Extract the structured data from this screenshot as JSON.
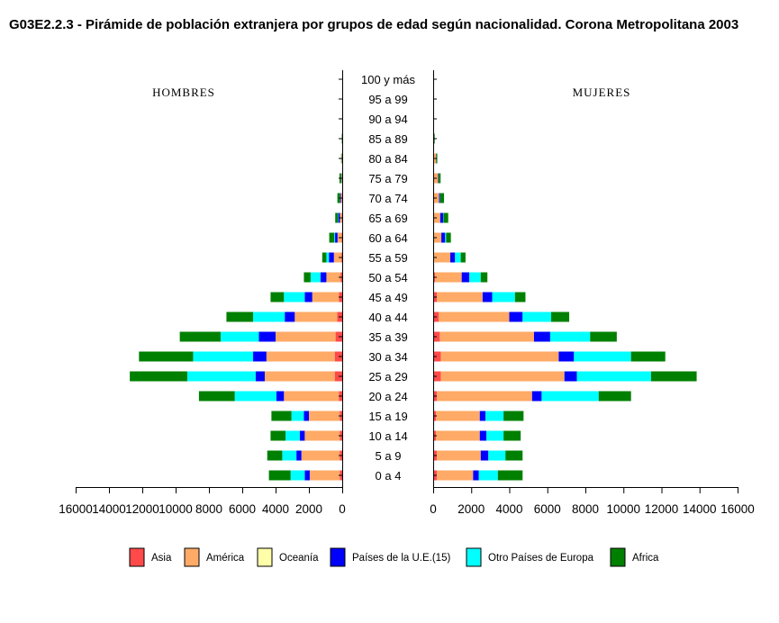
{
  "title": "G03E2.2.3 - Pirámide de población extranjera por grupos de edad según nacionalidad. Corona  Metropolitana 2003",
  "labels": {
    "left": "HOMBRES",
    "right": "MUJERES"
  },
  "chart_data": {
    "type": "bar",
    "orientation": "horizontal-pyramid",
    "categories": [
      "0 a 4",
      "5 a 9",
      "10 a 14",
      "15 a 19",
      "20 a 24",
      "25 a 29",
      "30 a 34",
      "35 a 39",
      "40 a 44",
      "45 a 49",
      "50 a 54",
      "55 a 59",
      "60 a 64",
      "65 a 69",
      "70 a 74",
      "75 a 79",
      "80 a 84",
      "85 a 89",
      "90 a 94",
      "95 a 99",
      "100 y más"
    ],
    "xlim": [
      0,
      16000
    ],
    "ticks": [
      0,
      2000,
      4000,
      6000,
      8000,
      10000,
      12000,
      14000,
      16000
    ],
    "tick_labels": [
      "0",
      "2000",
      "4000",
      "6000",
      "8000",
      "10000",
      "12000",
      "14000",
      "16000"
    ],
    "series": [
      {
        "name": "Asia",
        "color": "#ff4a4a",
        "hombres": [
          150,
          150,
          150,
          150,
          200,
          450,
          450,
          400,
          300,
          200,
          100,
          50,
          30,
          20,
          20,
          10,
          5,
          0,
          0,
          0,
          0
        ],
        "mujeres": [
          200,
          200,
          150,
          150,
          200,
          400,
          400,
          350,
          300,
          200,
          100,
          50,
          30,
          20,
          10,
          10,
          5,
          0,
          0,
          0,
          0
        ]
      },
      {
        "name": "América",
        "color": "#ffaa66",
        "hombres": [
          1800,
          2300,
          2100,
          1850,
          3300,
          4200,
          4100,
          3600,
          2550,
          1600,
          850,
          450,
          250,
          120,
          60,
          30,
          20,
          10,
          0,
          0,
          0
        ],
        "mujeres": [
          1900,
          2300,
          2300,
          2300,
          5000,
          6500,
          6200,
          4950,
          3700,
          2400,
          1400,
          850,
          400,
          350,
          300,
          250,
          150,
          50,
          20,
          0,
          0
        ]
      },
      {
        "name": "Oceanía",
        "color": "#ffffaa",
        "hombres": [
          0,
          0,
          0,
          0,
          0,
          0,
          0,
          0,
          0,
          0,
          0,
          0,
          0,
          0,
          0,
          0,
          0,
          0,
          0,
          0,
          0
        ],
        "mujeres": [
          0,
          0,
          0,
          0,
          0,
          0,
          0,
          0,
          0,
          0,
          0,
          0,
          0,
          0,
          0,
          0,
          0,
          0,
          0,
          0,
          0
        ]
      },
      {
        "name": "Países de la U.E.(15)",
        "color": "#0000ff",
        "hombres": [
          300,
          300,
          300,
          300,
          450,
          550,
          800,
          1000,
          600,
          450,
          350,
          300,
          150,
          100,
          50,
          20,
          10,
          5,
          0,
          0,
          0
        ],
        "mujeres": [
          300,
          400,
          350,
          300,
          500,
          650,
          800,
          850,
          700,
          500,
          400,
          250,
          200,
          150,
          50,
          30,
          10,
          5,
          0,
          0,
          0
        ]
      },
      {
        "name": "Otro Países de Europa",
        "color": "#00ffff",
        "hombres": [
          850,
          850,
          850,
          750,
          2500,
          4100,
          3600,
          2300,
          1900,
          1250,
          600,
          150,
          50,
          30,
          10,
          5,
          0,
          0,
          0,
          0,
          0
        ],
        "mujeres": [
          1000,
          900,
          900,
          950,
          3000,
          3900,
          3000,
          2100,
          1500,
          1200,
          600,
          300,
          50,
          20,
          10,
          0,
          0,
          0,
          0,
          0,
          0
        ]
      },
      {
        "name": "Africa",
        "color": "#008000",
        "hombres": [
          1300,
          900,
          900,
          1200,
          2150,
          3450,
          3250,
          2450,
          1600,
          800,
          400,
          250,
          300,
          150,
          150,
          100,
          30,
          20,
          5,
          0,
          0
        ],
        "mujeres": [
          1300,
          900,
          900,
          1050,
          1700,
          2400,
          1800,
          1400,
          950,
          550,
          350,
          250,
          250,
          250,
          200,
          100,
          50,
          30,
          10,
          0,
          0
        ]
      }
    ]
  }
}
